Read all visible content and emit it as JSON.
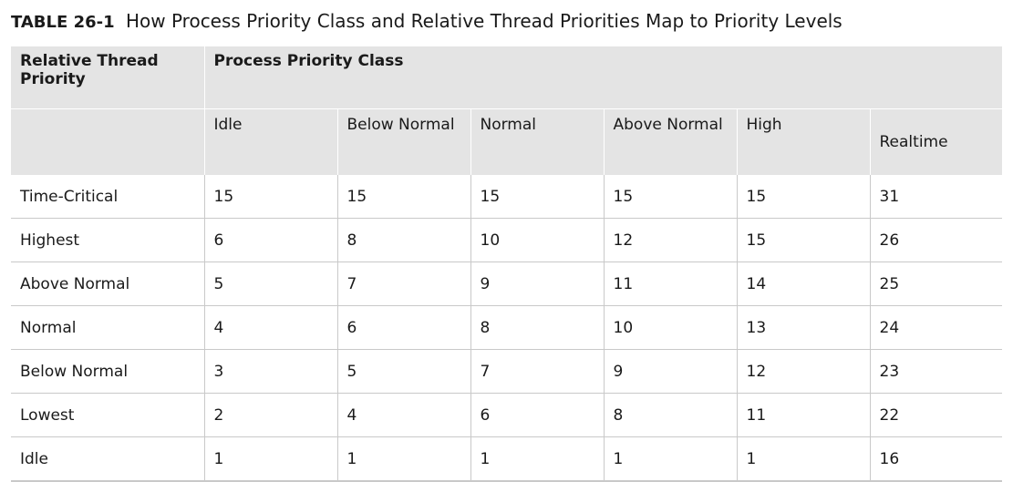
{
  "caption": {
    "label": "TABLE 26-1",
    "text": "How Process Priority Class and Relative Thread Priorities Map to Priority Levels"
  },
  "table": {
    "corner_header": "Relative Thread Priority",
    "group_header": "Process Priority Class",
    "columns": [
      "Idle",
      "Below Normal",
      "Normal",
      "Above Normal",
      "High",
      "Realtime"
    ],
    "rows": [
      {
        "label": "Time-Critical",
        "values": [
          "15",
          "15",
          "15",
          "15",
          "15",
          "31"
        ]
      },
      {
        "label": "Highest",
        "values": [
          "6",
          "8",
          "10",
          "12",
          "15",
          "26"
        ]
      },
      {
        "label": "Above Normal",
        "values": [
          "5",
          "7",
          "9",
          "11",
          "14",
          "25"
        ]
      },
      {
        "label": "Normal",
        "values": [
          "4",
          "6",
          "8",
          "10",
          "13",
          "24"
        ]
      },
      {
        "label": "Below Normal",
        "values": [
          "3",
          "5",
          "7",
          "9",
          "12",
          "23"
        ]
      },
      {
        "label": "Lowest",
        "values": [
          "2",
          "4",
          "6",
          "8",
          "11",
          "22"
        ]
      },
      {
        "label": "Idle",
        "values": [
          "1",
          "1",
          "1",
          "1",
          "1",
          "16"
        ]
      }
    ]
  }
}
